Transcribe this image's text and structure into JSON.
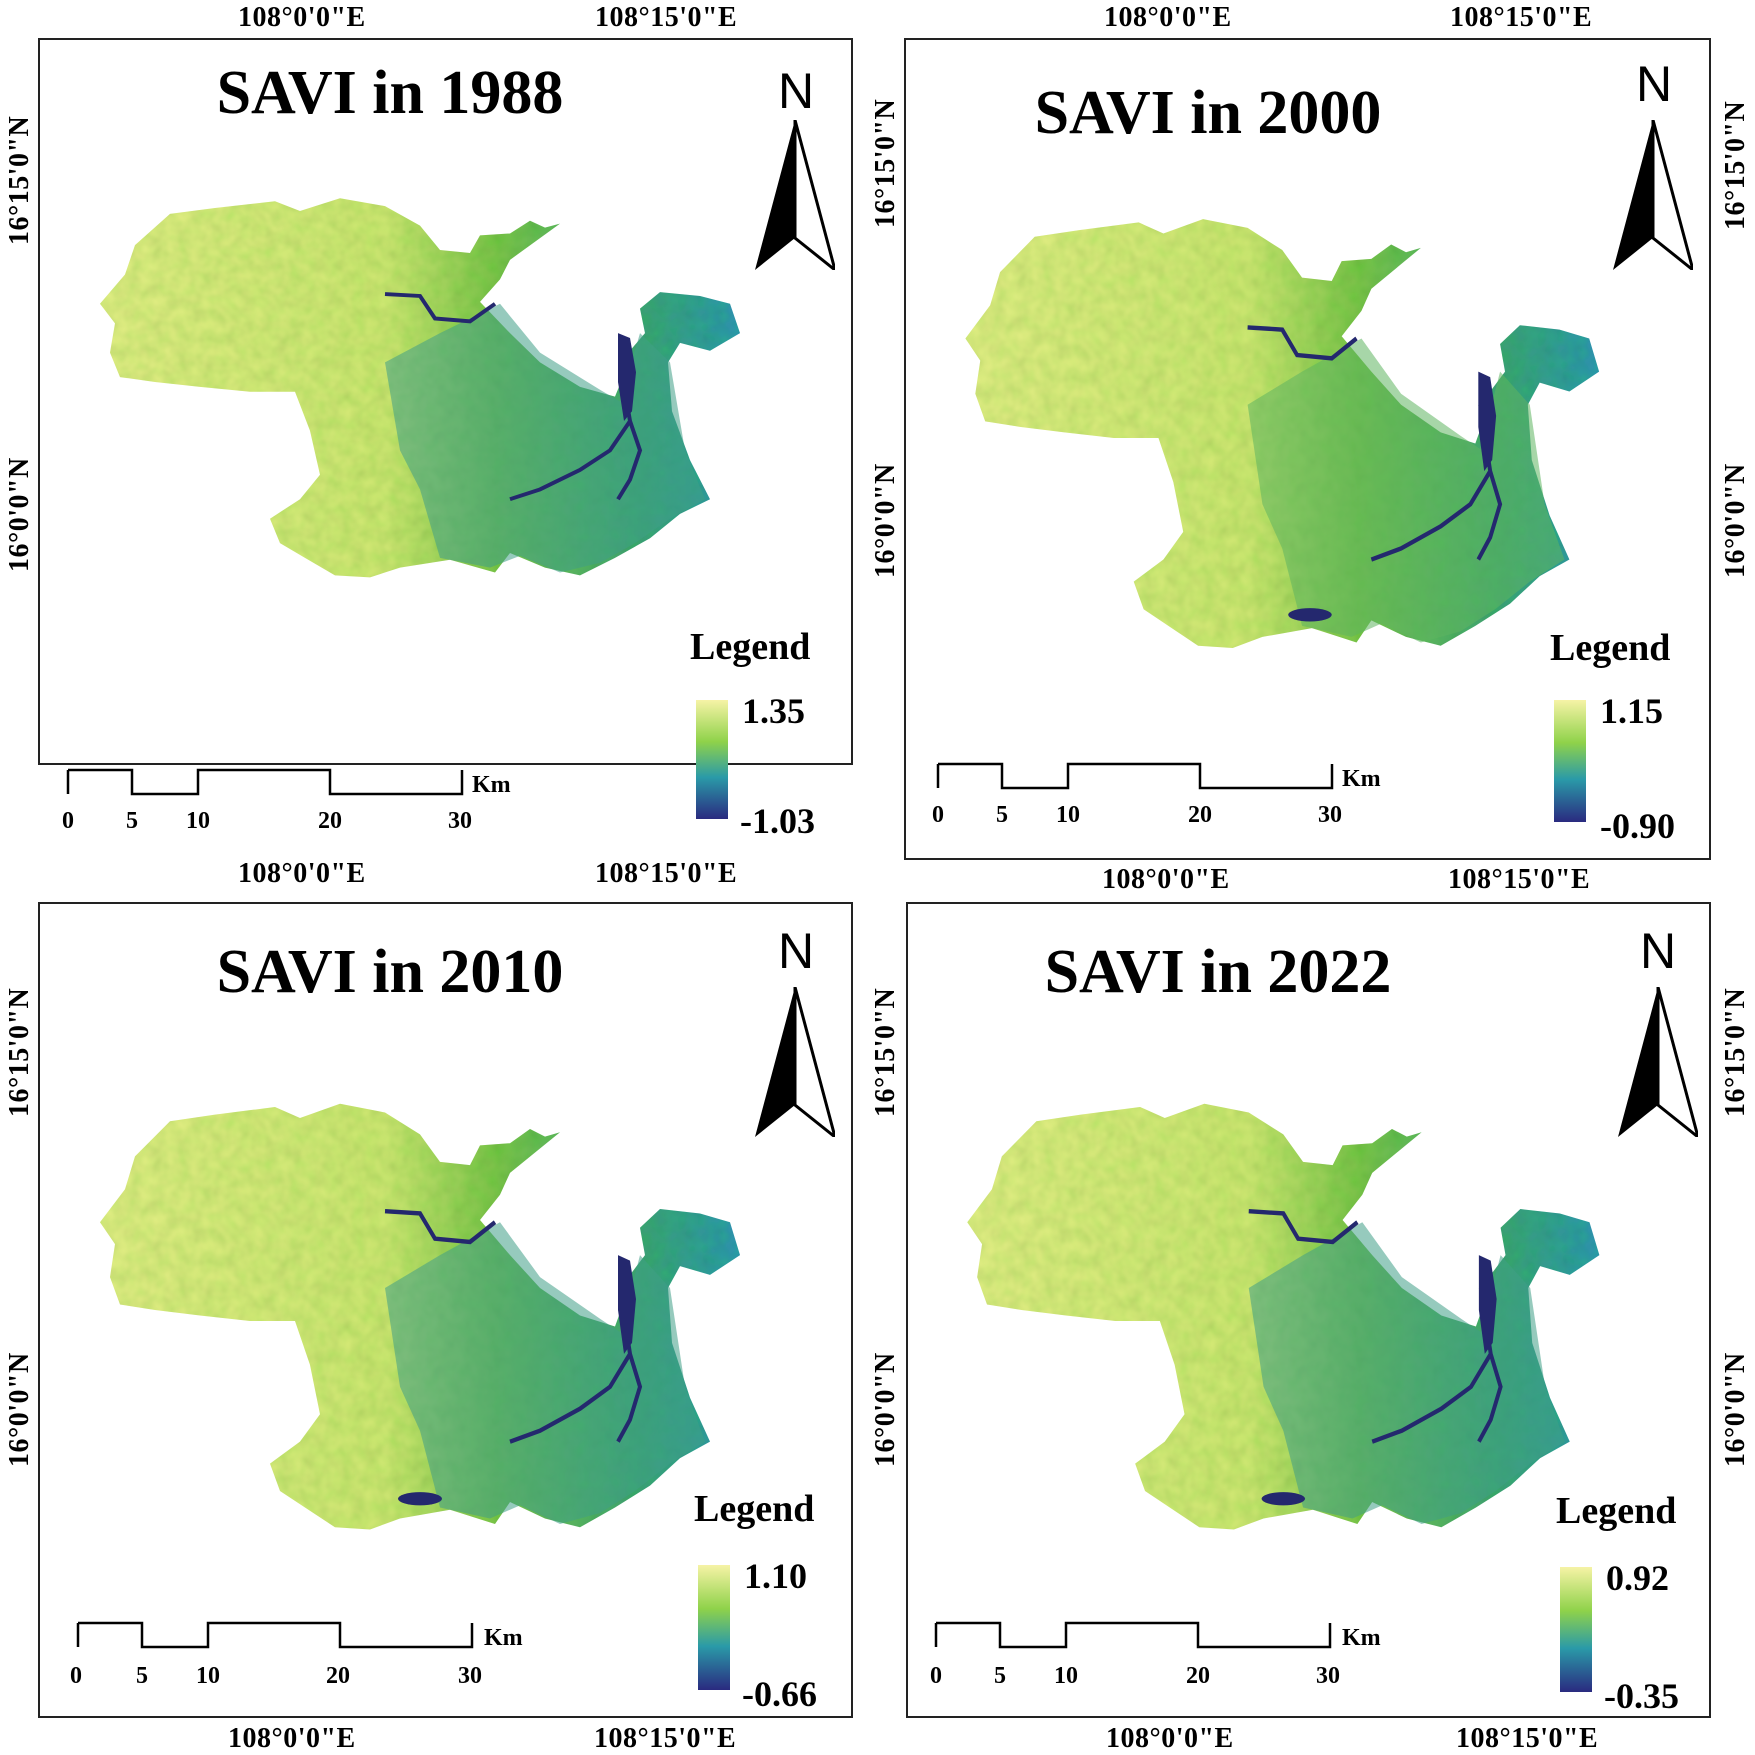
{
  "colors": {
    "high": "#f4f0a0",
    "mid": "#8fd24a",
    "low": "#2f8fb6",
    "water": "#24286e"
  },
  "panels": [
    {
      "title": "SAVI in 1988",
      "legend": {
        "label": "Legend",
        "max": "1.35",
        "min": "-1.03",
        "min_value": -1.03,
        "max_value": 1.35
      },
      "north": "N",
      "scale": {
        "unit": "Km",
        "ticks": [
          "0",
          "5",
          "10",
          "20",
          "30"
        ]
      },
      "lon_labels": {
        "top": [
          "108°0'0\"E",
          "108°15'0\"E"
        ],
        "bottom": [
          "108°0'0\"E",
          "108°15'0\"E"
        ]
      },
      "lat_labels": {
        "left": [
          "16°15'0\"N",
          "16°0'0\"N"
        ]
      }
    },
    {
      "title": "SAVI in 2000",
      "legend": {
        "label": "Legend",
        "max": "1.15",
        "min": "-0.90",
        "min_value": -0.9,
        "max_value": 1.15
      },
      "north": "N",
      "scale": {
        "unit": "Km",
        "ticks": [
          "0",
          "5",
          "10",
          "20",
          "30"
        ]
      },
      "lon_labels": {
        "top": [
          "108°0'0\"E",
          "108°15'0\"E"
        ],
        "bottom": [
          "108°0'0\"E",
          "108°15'0\"E"
        ]
      },
      "lat_labels": {
        "left": [
          "16°15'0\"N",
          "16°0'0\"N"
        ],
        "right": [
          "16°15'0\"N",
          "16°0'0\"N"
        ]
      }
    },
    {
      "title": "SAVI in 2010",
      "legend": {
        "label": "Legend",
        "max": "1.10",
        "min": "-0.66",
        "min_value": -0.66,
        "max_value": 1.1
      },
      "north": "N",
      "scale": {
        "unit": "Km",
        "ticks": [
          "0",
          "5",
          "10",
          "20",
          "30"
        ]
      },
      "lon_labels": {
        "bottom": [
          "108°0'0\"E",
          "108°15'0\"E"
        ]
      },
      "lat_labels": {
        "left": [
          "16°15'0\"N",
          "16°0'0\"N"
        ]
      }
    },
    {
      "title": "SAVI in 2022",
      "legend": {
        "label": "Legend",
        "max": "0.92",
        "min": "-0.35",
        "min_value": -0.35,
        "max_value": 0.92
      },
      "north": "N",
      "scale": {
        "unit": "Km",
        "ticks": [
          "0",
          "5",
          "10",
          "20",
          "30"
        ]
      },
      "lon_labels": {
        "bottom": [
          "108°0'0\"E",
          "108°15'0\"E"
        ]
      },
      "lat_labels": {
        "left": [
          "16°15'0\"N",
          "16°0'0\"N"
        ],
        "right": [
          "16°15'0\"N",
          "16°0'0\"N"
        ]
      }
    }
  ]
}
